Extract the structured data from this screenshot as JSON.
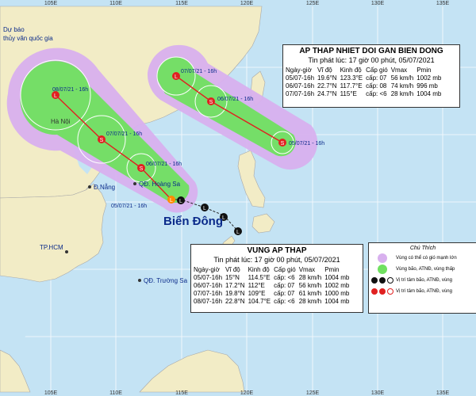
{
  "agency": [
    "Dự báo",
    "thủy văn quốc gia"
  ],
  "lon_labels": [
    "105E",
    "110E",
    "115E",
    "120E",
    "125E",
    "130E",
    "135E"
  ],
  "places": {
    "hanoi": "Hà Nội",
    "danang": "Đ.Nẵng",
    "hoangsa": "QĐ. Hoàng Sa",
    "hcm": "TP.HCM",
    "truongsa": "QĐ. Trường Sa",
    "biendong": "Biển Đông"
  },
  "track1_labels": [
    "07/07/21 - 16h",
    "06/07/21 - 16h",
    "05/07/21 - 16h"
  ],
  "track2_labels": [
    "08/07/21 - 16h",
    "07/07/21 - 16h",
    "06/07/21 - 16h",
    "05/07/21 - 16h"
  ],
  "box1": {
    "title": "AP THAP NHIET DOI GAN BIEN DONG",
    "issued": "Tin phát lúc: 17 giờ 00 phút, 05/07/2021",
    "headers": [
      "Ngày-giờ",
      "Vĩ độ",
      "Kinh độ",
      "Cấp gió",
      "Vmax",
      "Pmin"
    ],
    "rows": [
      [
        "05/07-16h",
        "19.6°N",
        "123.3°E",
        "cấp: 07",
        "56 km/h",
        "1002 mb"
      ],
      [
        "06/07-16h",
        "22.7°N",
        "117.7°E",
        "cấp: 08",
        "74 km/h",
        "996 mb"
      ],
      [
        "07/07-16h",
        "24.7°N",
        "115°E",
        "cấp: <6",
        "28 km/h",
        "1004 mb"
      ]
    ]
  },
  "box2": {
    "title": "VUNG AP THAP",
    "issued": "Tin phát lúc: 17 giờ 00 phút, 05/07/2021",
    "headers": [
      "Ngày-giờ",
      "Vĩ độ",
      "Kinh độ",
      "Cấp gió",
      "Vmax",
      "Pmin"
    ],
    "rows": [
      [
        "05/07-16h",
        "15°N",
        "114.5°E",
        "cấp: <6",
        "28 km/h",
        "1004 mb"
      ],
      [
        "06/07-16h",
        "17.2°N",
        "112°E",
        "cấp: 07",
        "56 km/h",
        "1002 mb"
      ],
      [
        "07/07-16h",
        "19.8°N",
        "109°E",
        "cấp: 07",
        "61 km/h",
        "1000 mb"
      ],
      [
        "08/07-16h",
        "22.8°N",
        "104.7°E",
        "cấp: <6",
        "28 km/h",
        "1004 mb"
      ]
    ]
  },
  "legend": {
    "title": "Chú Thích",
    "items": [
      "Vùng có thể có gió mạnh lớn",
      "Vùng bão, ATNĐ, vùng thấp",
      "Vị trí tâm bão, ATNĐ, vùng",
      "Vị trí tâm bão, ATNĐ, vùng"
    ]
  },
  "colors": {
    "sea": "#c4e3f4",
    "land": "#f2ecc6",
    "purple_cone": "#d8b0ee",
    "green_cone": "#70e060",
    "track": "#e02020",
    "label_blue": "#0a2a8a"
  }
}
